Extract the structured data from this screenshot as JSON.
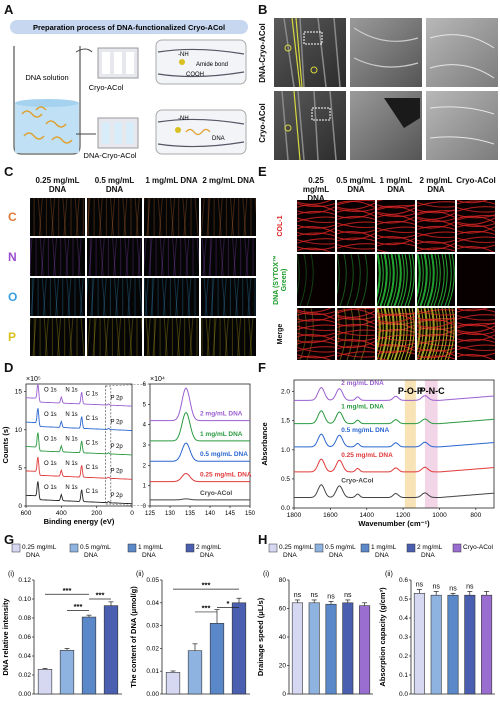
{
  "panels": {
    "A": {
      "letter": "A",
      "title": "Preparation process of DNA-functionalized Cryo-ACol",
      "beaker_label": "DNA solution",
      "scaffold_top": "Cryo-ACol",
      "scaffold_bottom": "DNA-Cryo-ACol",
      "chem_nh": "-NH",
      "chem_amide": "Amide bond",
      "chem_cooh": "COOH",
      "chem_nh2": "-NH",
      "chem_dna": "DNA"
    },
    "B": {
      "letter": "B",
      "row1": "DNA-Cryo-ACol",
      "row2": "Cryo-ACol"
    },
    "C": {
      "letter": "C",
      "columns": [
        "0.25 mg/mL DNA",
        "0.5 mg/mL DNA",
        "1 mg/mL DNA",
        "2 mg/mL DNA"
      ],
      "rows": [
        {
          "label": "C",
          "color": "#e07b39"
        },
        {
          "label": "N",
          "color": "#9b4fd0"
        },
        {
          "label": "O",
          "color": "#3aa0e0"
        },
        {
          "label": "P",
          "color": "#d8c020"
        }
      ]
    },
    "D": {
      "letter": "D"
    },
    "E": {
      "letter": "E",
      "columns": [
        "0.25 mg/mL DNA",
        "0.5 mg/mL DNA",
        "1 mg/mL DNA",
        "2 mg/mL DNA",
        "Cryo-ACol"
      ],
      "rows": [
        "COL-1",
        "DNA (SYTOX™ Green)",
        "Merge"
      ]
    },
    "F": {
      "letter": "F"
    },
    "G": {
      "letter": "G"
    },
    "H": {
      "letter": "H"
    }
  },
  "chart_data": [
    {
      "id": "D-left",
      "type": "line",
      "multiplier": "×10⁵",
      "xlabel": "Binding energy (eV)",
      "ylabel": "Counts (s)",
      "xlim": [
        600,
        0
      ],
      "xticks": [
        600,
        400,
        200,
        0
      ],
      "ylim": [
        0,
        16
      ],
      "yticks": [
        0,
        5,
        10,
        15
      ],
      "peak_labels": [
        "O 1s",
        "N 1s",
        "C 1s",
        "P 2p"
      ],
      "series": [
        {
          "color": "#222222",
          "offset": 0
        },
        {
          "color": "#e03a3a",
          "offset": 3.2
        },
        {
          "color": "#2a9a40",
          "offset": 6.4
        },
        {
          "color": "#2a66d0",
          "offset": 9.6
        },
        {
          "color": "#9a5fd0",
          "offset": 12.8
        }
      ]
    },
    {
      "id": "D-right",
      "type": "line",
      "multiplier": "×10⁴",
      "xlim": [
        125,
        150
      ],
      "xticks": [
        125,
        130,
        135,
        140,
        145,
        150
      ],
      "ylim": [
        0,
        6
      ],
      "yticks": [
        0,
        1,
        2,
        3,
        4,
        5,
        6
      ],
      "series": [
        {
          "name": "2 mg/mL DNA",
          "color": "#9a5fd0",
          "base": 4.0,
          "peak": 1.6
        },
        {
          "name": "1 mg/mL DNA",
          "color": "#2a9a40",
          "base": 3.0,
          "peak": 1.4
        },
        {
          "name": "0.5 mg/mL DNA",
          "color": "#2a66d0",
          "base": 2.0,
          "peak": 0.9
        },
        {
          "name": "0.25 mg/mL DNA",
          "color": "#e03a3a",
          "base": 1.0,
          "peak": 0.4
        },
        {
          "name": "Cryo-ACol",
          "color": "#444444",
          "base": 0.1,
          "peak": 0.05
        }
      ]
    },
    {
      "id": "F",
      "type": "line",
      "xlabel": "Wavenumber (cm⁻¹)",
      "ylabel": "Absorbance",
      "xlim": [
        1800,
        700
      ],
      "xticks": [
        1800,
        1600,
        1400,
        1200,
        1000,
        800
      ],
      "ylim": [
        0,
        2.2
      ],
      "yticks": [
        0.0,
        0.5,
        1.0,
        1.5,
        2.0
      ],
      "annotations": [
        "P-O-P",
        "P-N-C"
      ],
      "series": [
        {
          "name": "2 mg/mL DNA",
          "color": "#9a5fd0",
          "offset": 1.85
        },
        {
          "name": "1 mg/mL DNA",
          "color": "#2a9a40",
          "offset": 1.45
        },
        {
          "name": "0.5 mg/mL DNA",
          "color": "#2a66d0",
          "offset": 1.05
        },
        {
          "name": "0.25 mg/mL DNA",
          "color": "#e03a3a",
          "offset": 0.62
        },
        {
          "name": "Cryo-ACol",
          "color": "#444444",
          "offset": 0.18
        }
      ]
    },
    {
      "id": "G-i",
      "type": "bar",
      "sublabel": "(i)",
      "ylabel": "DNA relative intensity",
      "ylim": [
        0,
        0.12
      ],
      "yticks": [
        0.0,
        0.02,
        0.04,
        0.06,
        0.08,
        0.1,
        0.12
      ],
      "values": [
        0.026,
        0.046,
        0.081,
        0.093
      ],
      "errors": [
        0.001,
        0.002,
        0.002,
        0.004
      ],
      "significance": [
        "***",
        "***",
        "***"
      ]
    },
    {
      "id": "G-ii",
      "type": "bar",
      "sublabel": "(ii)",
      "ylabel": "The content of DNA (μmol/g)",
      "ylim": [
        0,
        0.05
      ],
      "yticks": [
        0.0,
        0.01,
        0.02,
        0.03,
        0.04,
        0.05
      ],
      "values": [
        0.0095,
        0.019,
        0.031,
        0.04
      ],
      "errors": [
        0.0006,
        0.003,
        0.006,
        0.002
      ],
      "significance": [
        "***",
        "***",
        "*"
      ]
    },
    {
      "id": "H-i",
      "type": "bar",
      "sublabel": "(i)",
      "ylabel": "Drainage speed (μL/s)",
      "ylim": [
        0,
        80
      ],
      "yticks": [
        0,
        20,
        40,
        60,
        80
      ],
      "values": [
        64,
        64,
        63,
        64,
        62
      ],
      "errors": [
        2,
        2,
        2,
        2,
        2
      ],
      "significance": [
        "ns",
        "ns",
        "ns",
        "ns"
      ]
    },
    {
      "id": "H-ii",
      "type": "bar",
      "sublabel": "(ii)",
      "ylabel": "Absorption capacity (g/cm³)",
      "ylim": [
        0,
        0.6
      ],
      "yticks": [
        0.0,
        0.1,
        0.2,
        0.3,
        0.4,
        0.5,
        0.6
      ],
      "values": [
        0.53,
        0.52,
        0.52,
        0.52,
        0.52
      ],
      "errors": [
        0.02,
        0.02,
        0.01,
        0.02,
        0.02
      ],
      "significance": [
        "ns",
        "ns",
        "ns",
        "ns"
      ]
    }
  ],
  "legend_G": {
    "items": [
      {
        "label": "0.25 mg/mL DNA",
        "color": "#d6d8f2"
      },
      {
        "label": "0.5 mg/mL DNA",
        "color": "#8fb3e0"
      },
      {
        "label": "1 mg/mL DNA",
        "color": "#5a88c8"
      },
      {
        "label": "2 mg/mL DNA",
        "color": "#4a5fb0"
      }
    ]
  },
  "legend_H": {
    "items": [
      {
        "label": "0.25 mg/mL DNA",
        "color": "#d6d8f2"
      },
      {
        "label": "0.5 mg/mL DNA",
        "color": "#8fb3e0"
      },
      {
        "label": "1 mg/mL DNA",
        "color": "#5a88c8"
      },
      {
        "label": "2 mg/mL DNA",
        "color": "#4a5fb0"
      },
      {
        "label": "Cryo-ACol",
        "color": "#9a6ed0"
      }
    ]
  }
}
